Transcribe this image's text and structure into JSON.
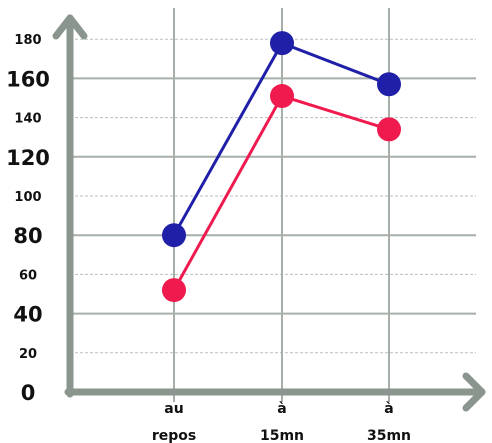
{
  "chart_data": {
    "type": "line",
    "title": "",
    "xlabel": "",
    "ylabel": "",
    "categories": [
      [
        "au",
        "repos"
      ],
      [
        "à",
        "15mn"
      ],
      [
        "à",
        "35mn"
      ]
    ],
    "ylim": [
      0,
      190
    ],
    "y_ticks_major": [
      0,
      40,
      80,
      120,
      160
    ],
    "y_ticks_minor": [
      20,
      60,
      100,
      140,
      180
    ],
    "grid": true,
    "legend": "none",
    "series": [
      {
        "values": [
          80,
          178,
          157
        ],
        "color": "#1f1fa8"
      },
      {
        "values": [
          52,
          151,
          134
        ],
        "color": "#ef1a4e"
      }
    ],
    "colors": {
      "axis": "#8a958d",
      "grid_major": "#a7afa9",
      "grid_minor": "#b9bfbb"
    }
  }
}
